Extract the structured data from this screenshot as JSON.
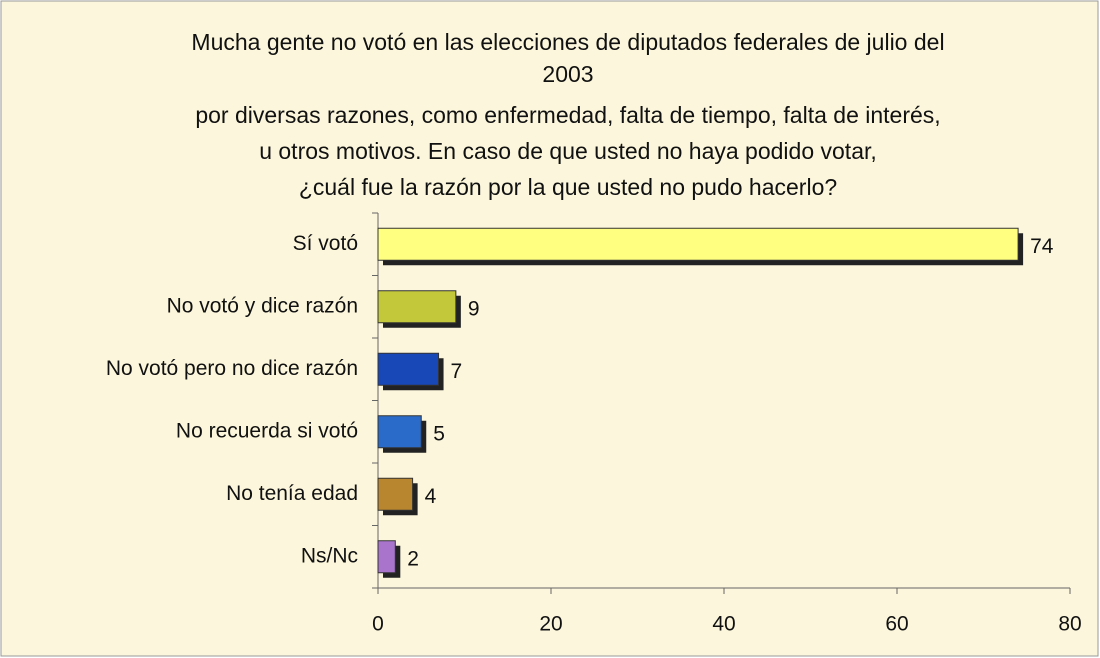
{
  "chart_data": {
    "type": "bar",
    "orientation": "horizontal",
    "title": [
      "Mucha gente no votó en las elecciones de diputados federales de julio del",
      "2003",
      "por diversas razones, como enfermedad, falta de tiempo, falta de interés,",
      "u otros motivos. En caso de que usted no haya podido votar,",
      "¿cuál fue la razón por la que usted no pudo hacerlo?"
    ],
    "categories": [
      "Sí votó",
      "No votó y dice razón",
      "No votó pero no dice razón",
      "No recuerda si votó",
      "No tenía edad",
      "Ns/Nc"
    ],
    "values": [
      74,
      9,
      7,
      5,
      4,
      2
    ],
    "colors": [
      "#ffff80",
      "#c2c83a",
      "#1848b8",
      "#2a6ac8",
      "#b8862e",
      "#a874cc"
    ],
    "xlim": [
      0,
      80
    ],
    "xticks": [
      0,
      20,
      40,
      60,
      80
    ],
    "grid": false
  }
}
